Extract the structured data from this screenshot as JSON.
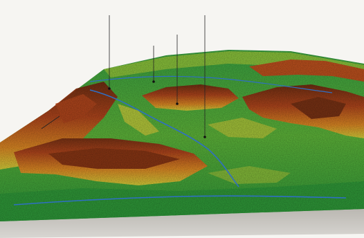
{
  "labels": [
    {
      "id": "callout-1",
      "text": ""
    },
    {
      "id": "callout-2",
      "text": ""
    },
    {
      "id": "callout-3",
      "text": ""
    },
    {
      "id": "callout-4",
      "text": ""
    },
    {
      "id": "callout-5",
      "text": ""
    },
    {
      "id": "map-label-1",
      "text": ""
    },
    {
      "id": "map-label-2",
      "text": ""
    },
    {
      "id": "map-label-3",
      "text": ""
    },
    {
      "id": "map-label-4",
      "text": ""
    },
    {
      "id": "map-label-5",
      "text": ""
    }
  ],
  "colors": {
    "lowland": "#2e9a3a",
    "plain": "#6cbf3c",
    "foothill": "#d9d23a",
    "slope": "#e08a24",
    "ridge": "#b2461c",
    "summit": "#6f2e12",
    "river": "#2f6fc4",
    "leader": "#222222"
  }
}
